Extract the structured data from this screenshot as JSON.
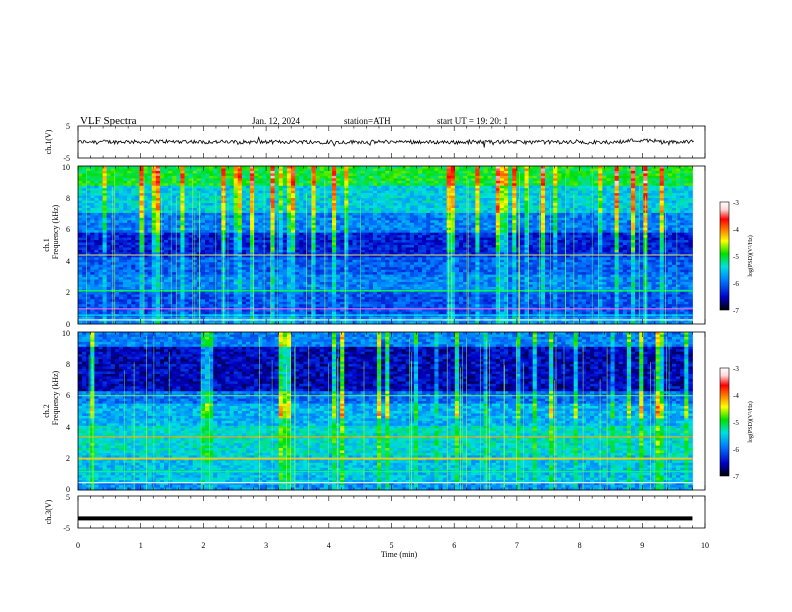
{
  "header": {
    "title": "VLF  Spectra",
    "date": "Jan.  12,  2024",
    "station": "station=ATH",
    "start_ut": "start  UT  =    19: 20: 1"
  },
  "chart_data": [
    {
      "id": "ch1-waveform",
      "type": "line",
      "ylabel": "ch.1(V)",
      "ylim": [
        -5,
        5
      ],
      "yticks": [
        "5",
        "-5"
      ],
      "baseline": 0,
      "noise_amplitude": 0.6,
      "xlim": [
        0,
        10
      ]
    },
    {
      "id": "ch1-spectrogram",
      "type": "heatmap",
      "ylabel_line1": "ch.1",
      "ylabel_line2": "Frequency  (kHz)",
      "ylim": [
        0,
        10
      ],
      "yticks": [
        "0",
        "2",
        "4",
        "6",
        "8",
        "10"
      ],
      "xlim": [
        0,
        9.8
      ],
      "colorbar": {
        "label": "log(PSD)(V²/Hz)",
        "range": [
          -7,
          -3
        ],
        "ticks": [
          "-3",
          "-4",
          "-5",
          "-6",
          "-7"
        ]
      }
    },
    {
      "id": "ch2-spectrogram",
      "type": "heatmap",
      "ylabel_line1": "ch.2",
      "ylabel_line2": "Frequency  (kHz)",
      "ylim": [
        0,
        10
      ],
      "yticks": [
        "0",
        "2",
        "4",
        "6",
        "8",
        "10"
      ],
      "xlim": [
        0,
        9.8
      ],
      "colorbar": {
        "label": "log(PSD)(V²/Hz)",
        "range": [
          -7,
          -3
        ],
        "ticks": [
          "-3",
          "-4",
          "-5",
          "-6",
          "-7"
        ]
      }
    },
    {
      "id": "ch3-waveform",
      "type": "line",
      "ylabel": "ch.3(V)",
      "ylim": [
        -5,
        5
      ],
      "yticks": [
        "5",
        "-5"
      ],
      "baseline": -2,
      "xlim": [
        0,
        9.8
      ],
      "xlabel": "Time  (min)",
      "xticks": [
        "0",
        "1",
        "2",
        "3",
        "4",
        "5",
        "6",
        "7",
        "8",
        "9",
        "10"
      ],
      "xrange": [
        0,
        10
      ]
    }
  ],
  "colors": {
    "axis": "#000000",
    "waveform": "#000000",
    "colormap": [
      "#000000",
      "#0000c8",
      "#0080ff",
      "#00e0e0",
      "#00e000",
      "#ffff00",
      "#ff8000",
      "#ff0000",
      "#ffd8d8",
      "#ffffff"
    ]
  }
}
